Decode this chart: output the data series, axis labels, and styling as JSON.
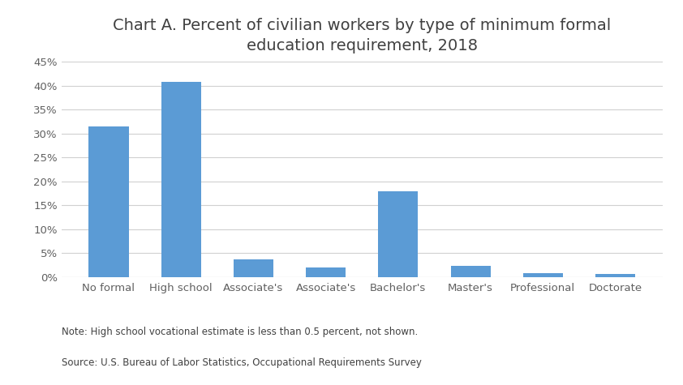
{
  "categories": [
    "No formal",
    "High school",
    "Associate's",
    "Associate's",
    "Bachelor's",
    "Master's",
    "Professional",
    "Doctorate"
  ],
  "values": [
    31.5,
    40.7,
    3.8,
    2.1,
    18.0,
    2.3,
    0.9,
    0.6
  ],
  "bar_color": "#5B9BD5",
  "title": "Chart A. Percent of civilian workers by type of minimum formal\neducation requirement, 2018",
  "title_fontsize": 14,
  "ylim": [
    0,
    45
  ],
  "yticks": [
    0,
    5,
    10,
    15,
    20,
    25,
    30,
    35,
    40,
    45
  ],
  "note_line1": "Note: High school vocational estimate is less than 0.5 percent, not shown.",
  "note_line2": "Source: U.S. Bureau of Labor Statistics, Occupational Requirements Survey",
  "background_color": "#ffffff",
  "grid_color": "#d0d0d0"
}
